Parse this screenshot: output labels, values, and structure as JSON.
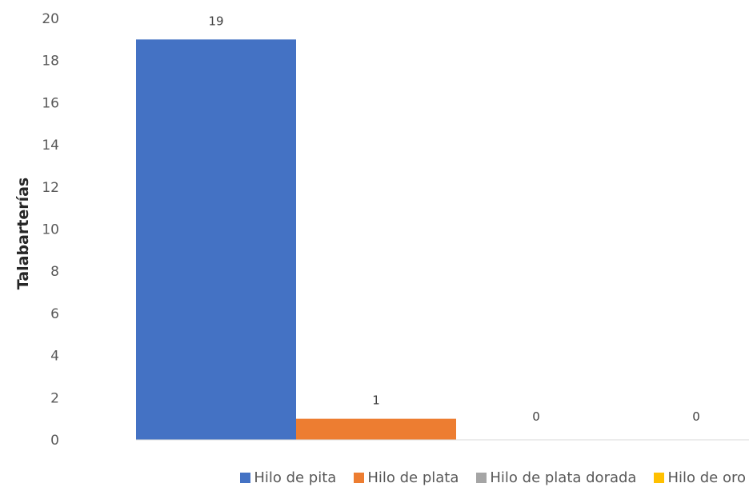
{
  "chart_data": {
    "type": "bar",
    "title": "",
    "xlabel": "",
    "ylabel": "Talabarterías",
    "ylim": [
      0,
      20
    ],
    "yticks": [
      0,
      2,
      4,
      6,
      8,
      10,
      12,
      14,
      16,
      18,
      20
    ],
    "grid": false,
    "legend_position": "bottom",
    "series": [
      {
        "name": "Hilo de pita",
        "value": 19,
        "color": "#4472C4"
      },
      {
        "name": "Hilo de plata",
        "value": 1,
        "color": "#ED7D31"
      },
      {
        "name": "Hilo de plata dorada",
        "value": 0,
        "color": "#A5A5A5"
      },
      {
        "name": "Hilo de oro",
        "value": 0,
        "color": "#FFC000"
      }
    ]
  }
}
